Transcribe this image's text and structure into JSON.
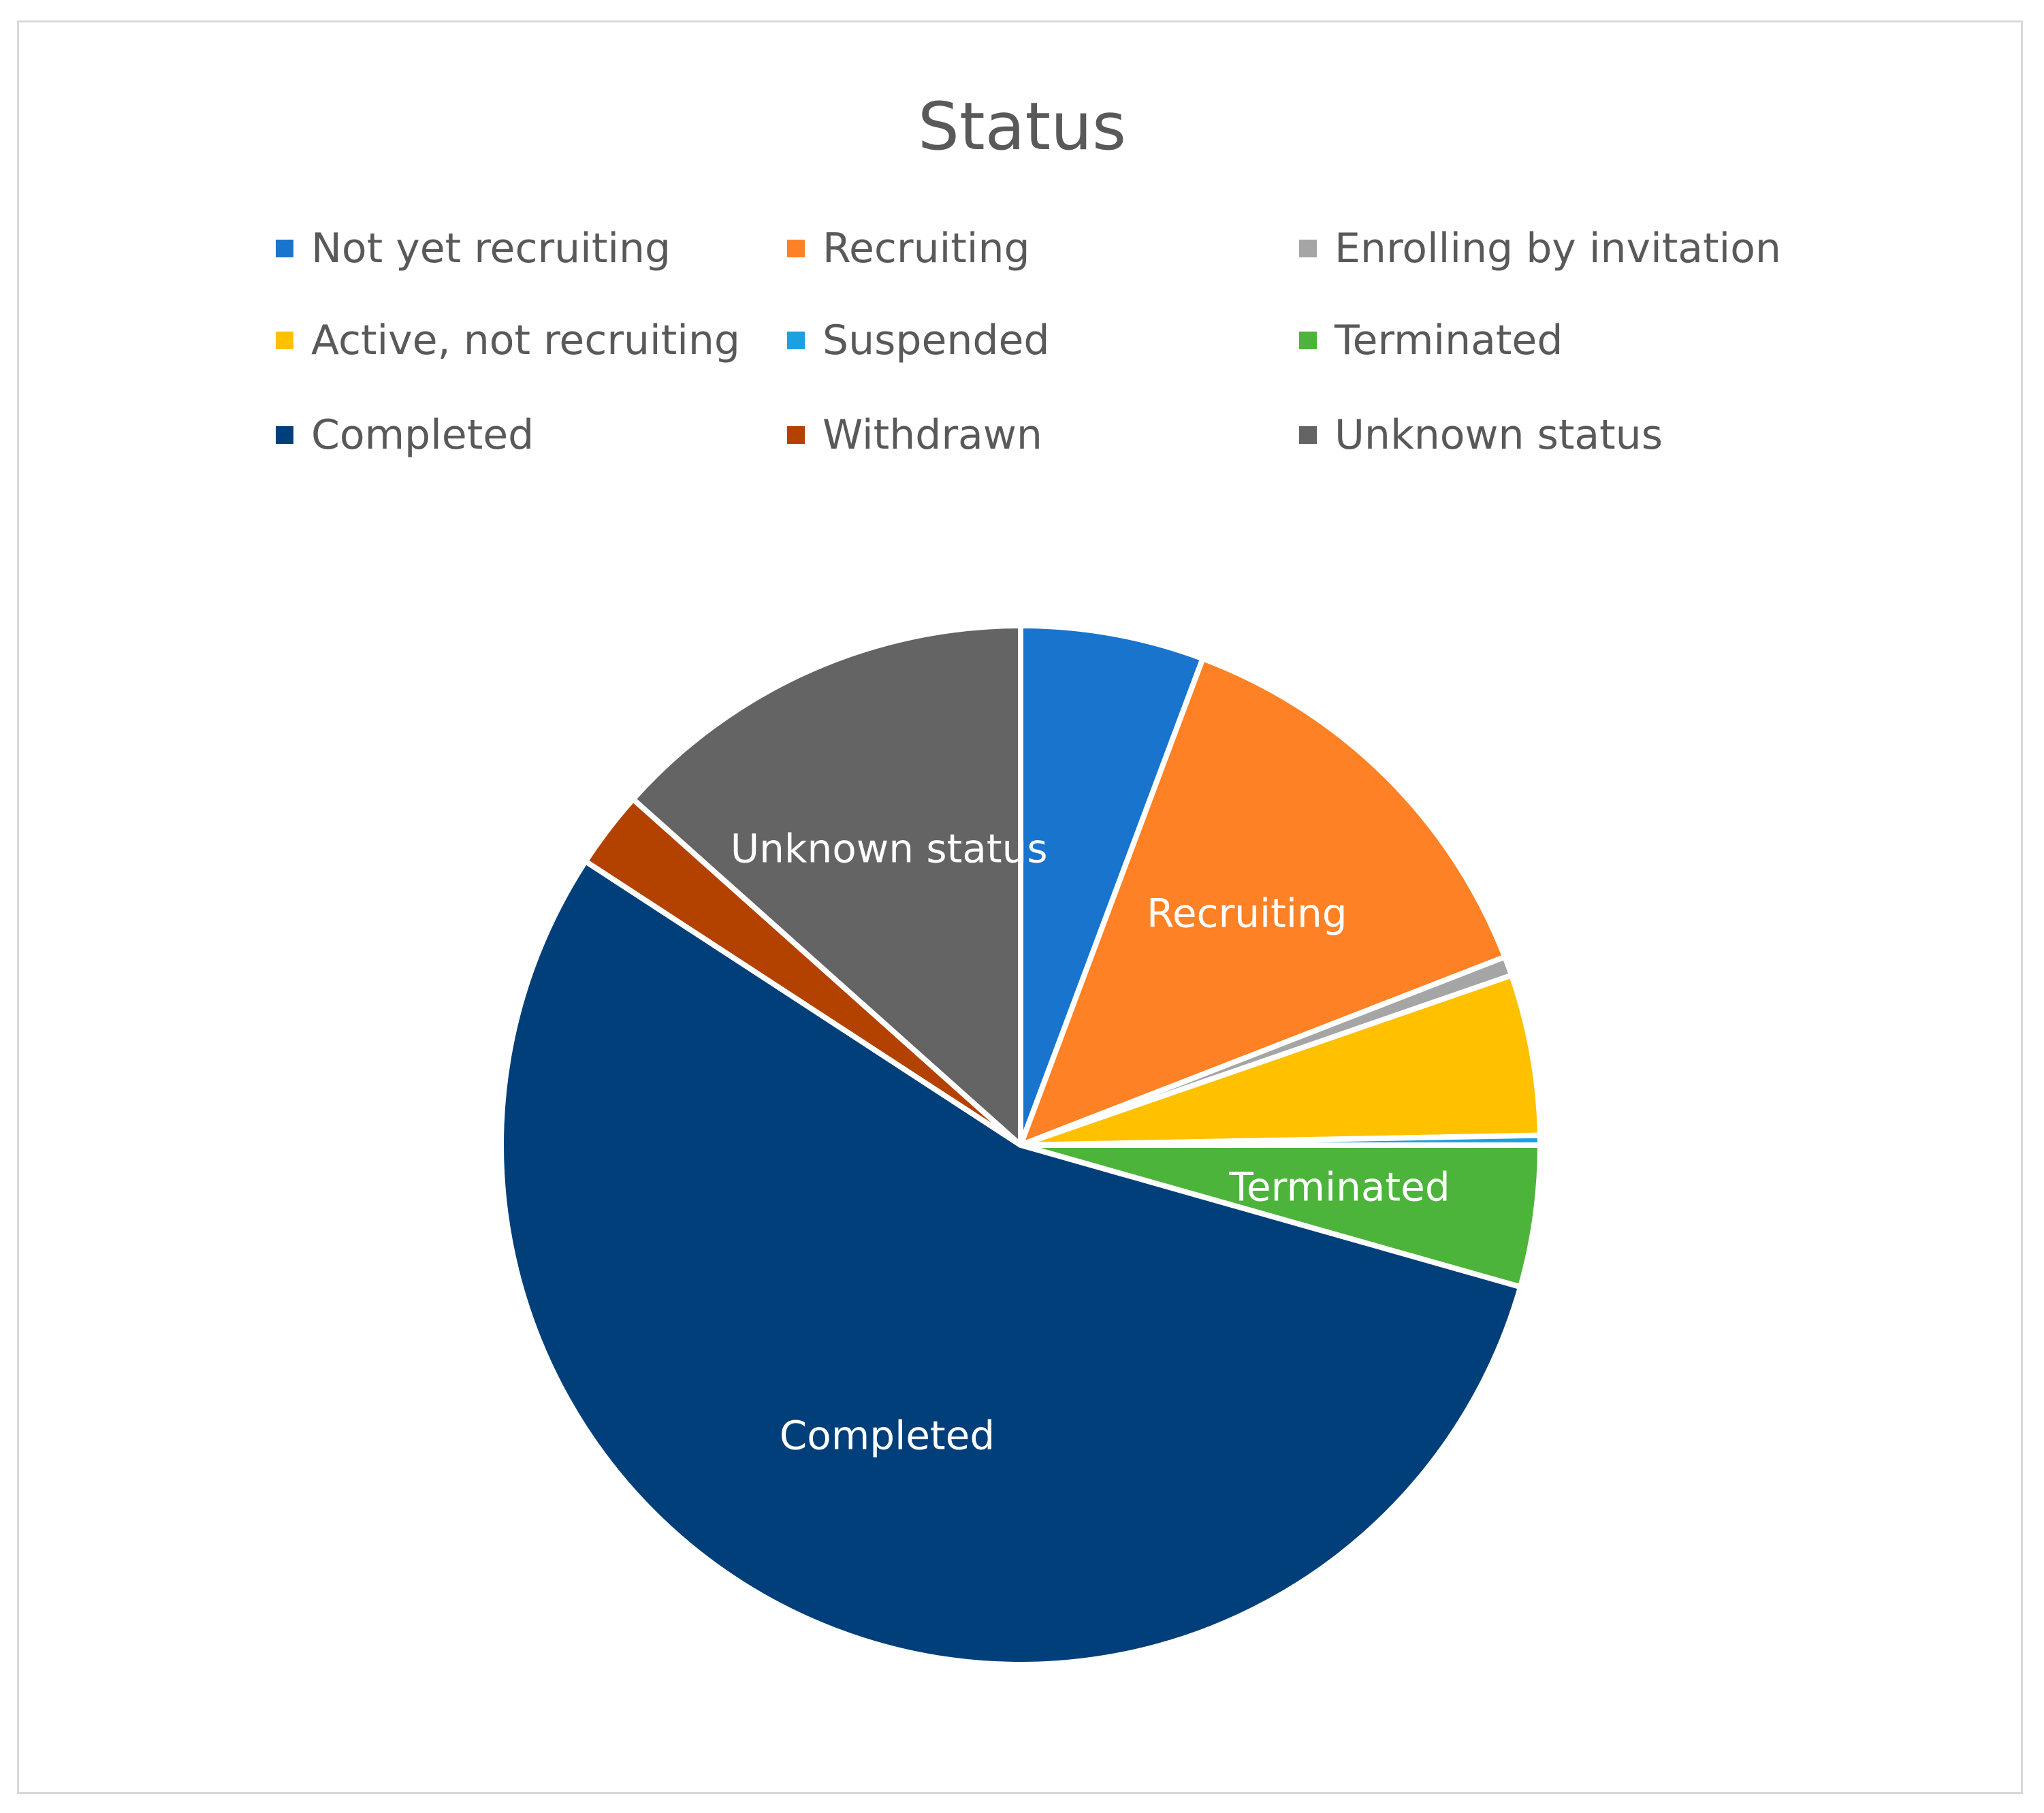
{
  "chart_data": {
    "type": "pie",
    "title": "Status",
    "legend_position": "top",
    "categories": [
      "Not yet recruiting",
      "Recruiting",
      "Enrolling by invitation",
      "Active, not recruiting",
      "Suspended",
      "Terminated",
      "Completed",
      "Withdrawn",
      "Unknown status"
    ],
    "values": [
      5.7,
      13.4,
      0.6,
      5.0,
      0.3,
      4.4,
      54.8,
      2.4,
      13.4
    ],
    "colors": [
      "#1874CD",
      "#FF8125",
      "#A5A5A5",
      "#FFC000",
      "#1BA1E2",
      "#4CB43B",
      "#003F7A",
      "#B34100",
      "#646464"
    ],
    "slice_labels": [
      "",
      "Recruiting",
      "",
      "",
      "",
      "Terminated",
      "Completed",
      "",
      "Unknown status"
    ]
  }
}
